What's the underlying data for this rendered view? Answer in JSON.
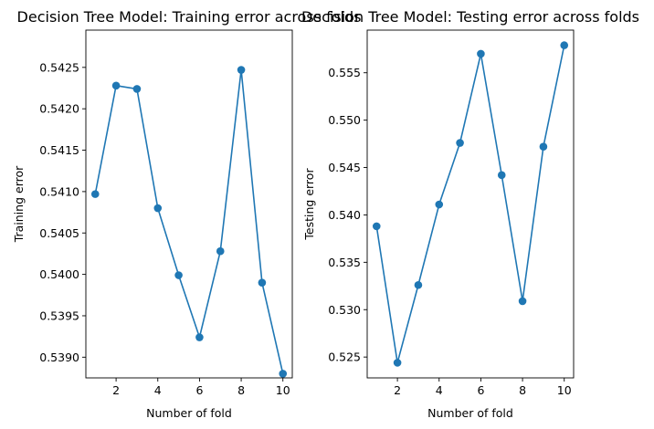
{
  "chart_data": [
    {
      "type": "line",
      "title": "Decision Tree Model: Training error across folds",
      "xlabel": "Number of fold",
      "ylabel": "Training error",
      "xlim": [
        0.55,
        10.45
      ],
      "ylim": [
        0.53875,
        0.54295
      ],
      "xticks": [
        2,
        4,
        6,
        8,
        10
      ],
      "xtick_labels": [
        "2",
        "4",
        "6",
        "8",
        "10"
      ],
      "yticks": [
        0.539,
        0.5395,
        0.54,
        0.5405,
        0.541,
        0.5415,
        0.542,
        0.5425
      ],
      "ytick_labels": [
        "0.5390",
        "0.5395",
        "0.5400",
        "0.5405",
        "0.5410",
        "0.5415",
        "0.5420",
        "0.5425"
      ],
      "grid": false,
      "color": "#1f77b4",
      "x": [
        1,
        2,
        3,
        4,
        5,
        6,
        7,
        8,
        9,
        10
      ],
      "values": [
        0.54097,
        0.54228,
        0.54224,
        0.5408,
        0.53999,
        0.53924,
        0.54028,
        0.54247,
        0.5399,
        0.5388
      ]
    },
    {
      "type": "line",
      "title": "Decision Tree Model: Testing error across folds",
      "xlabel": "Number of fold",
      "ylabel": "Testing error",
      "xlim": [
        0.55,
        10.45
      ],
      "ylim": [
        0.5228,
        0.5595
      ],
      "xticks": [
        2,
        4,
        6,
        8,
        10
      ],
      "xtick_labels": [
        "2",
        "4",
        "6",
        "8",
        "10"
      ],
      "yticks": [
        0.525,
        0.53,
        0.535,
        0.54,
        0.545,
        0.55,
        0.555
      ],
      "ytick_labels": [
        "0.525",
        "0.530",
        "0.535",
        "0.540",
        "0.545",
        "0.550",
        "0.555"
      ],
      "grid": false,
      "color": "#1f77b4",
      "x": [
        1,
        2,
        3,
        4,
        5,
        6,
        7,
        8,
        9,
        10
      ],
      "values": [
        0.5388,
        0.5244,
        0.5326,
        0.5411,
        0.5476,
        0.557,
        0.5442,
        0.5309,
        0.5472,
        0.5579
      ]
    }
  ]
}
